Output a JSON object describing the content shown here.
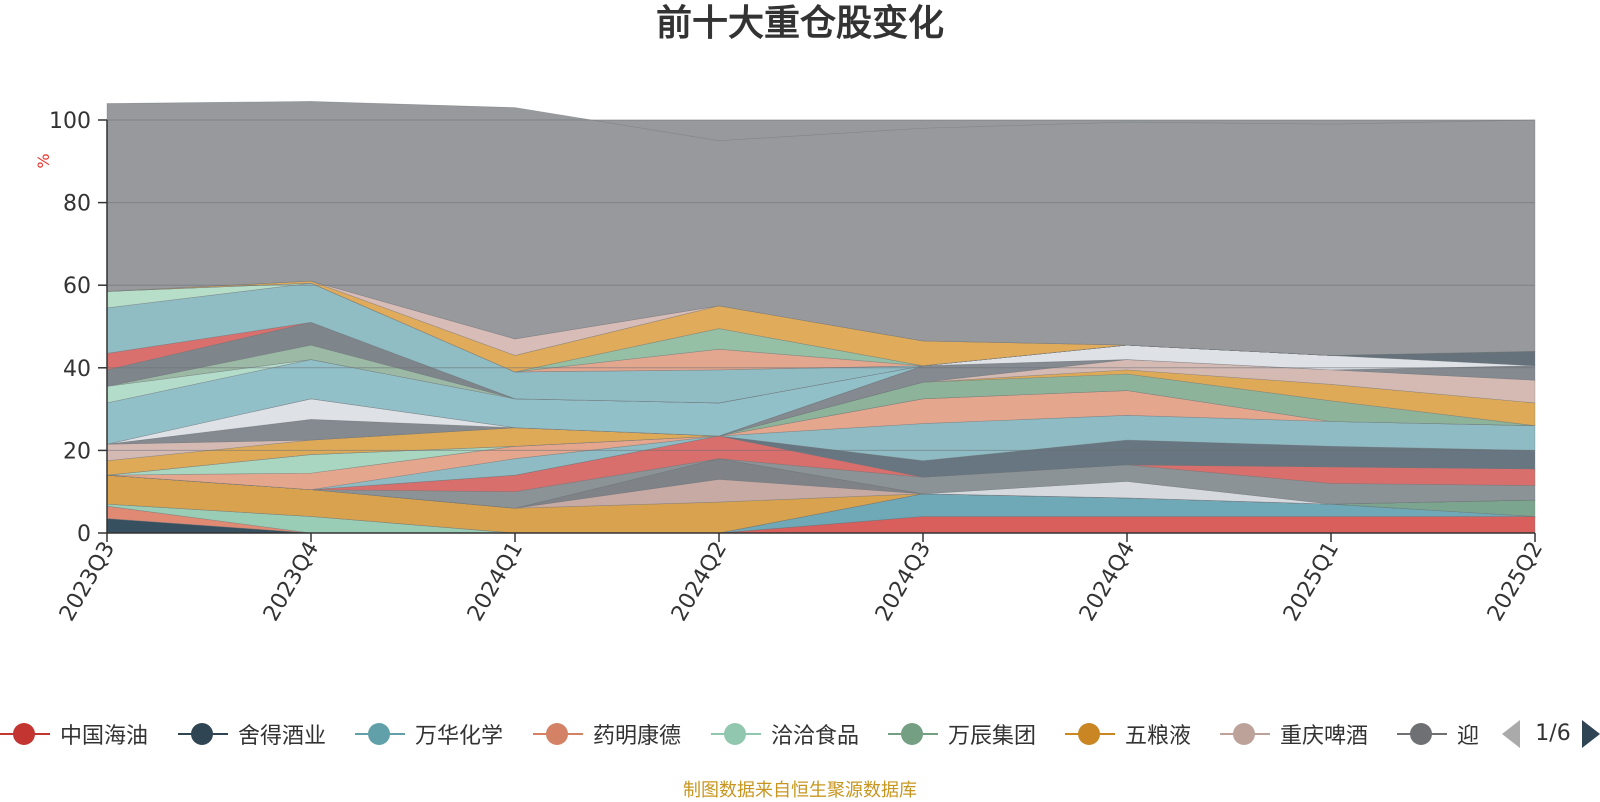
{
  "chart_data": {
    "type": "area",
    "stacked": true,
    "title": "前十大重仓股变化",
    "ylabel": "%",
    "ylim": [
      0,
      100
    ],
    "yticks": [
      0,
      20,
      40,
      60,
      80,
      100
    ],
    "grid": true,
    "categories": [
      "2023Q3",
      "2023Q4",
      "2024Q1",
      "2024Q2",
      "2024Q3",
      "2024Q4",
      "2025Q1",
      "2025Q2"
    ],
    "series": [
      {
        "name": "中国海油",
        "color": "#d95f5d",
        "values": [
          0,
          0,
          0,
          0,
          4,
          4,
          4,
          4
        ]
      },
      {
        "name": "舍得酒业",
        "color": "#37505f",
        "values": [
          3.5,
          0,
          0,
          0,
          0,
          0,
          0,
          0
        ]
      },
      {
        "name": "万华化学",
        "color": "#6fa8b6",
        "values": [
          0,
          0,
          0,
          0,
          5.5,
          4.5,
          3,
          0
        ]
      },
      {
        "name": "药明康德",
        "color": "#e08a74",
        "values": [
          3,
          0,
          0,
          0,
          0,
          0,
          0,
          0
        ]
      },
      {
        "name": "洽洽食品",
        "color": "#99cdb6",
        "values": [
          0.5,
          4,
          0,
          0,
          0,
          0,
          0,
          0
        ]
      },
      {
        "name": "万辰集团",
        "color": "#7ba58e",
        "values": [
          0,
          0,
          0,
          0,
          0,
          0,
          0,
          4
        ]
      },
      {
        "name": "五粮液",
        "color": "#d9a24e",
        "values": [
          7,
          6.5,
          6,
          7.5,
          0,
          0,
          0,
          0
        ]
      },
      {
        "name": "重庆啤酒",
        "color": "#c7aaa4",
        "values": [
          0,
          0,
          0,
          5.5,
          0,
          0,
          0,
          0
        ]
      },
      {
        "name": "迎驾贡酒",
        "color": "#7f8387",
        "values": [
          0,
          0,
          0,
          5,
          0,
          0,
          0,
          0
        ]
      },
      {
        "name": "",
        "color": "#d6d9de",
        "values": [
          0,
          0,
          0,
          0,
          0,
          4,
          0,
          0
        ]
      },
      {
        "name": "",
        "color": "#8c9396",
        "values": [
          0,
          0,
          4,
          0,
          4,
          4,
          5,
          3.5
        ]
      },
      {
        "name": "",
        "color": "#d86f6c",
        "values": [
          0,
          0,
          4,
          5.5,
          0,
          0,
          4,
          4
        ]
      },
      {
        "name": "",
        "color": "#677681",
        "values": [
          0,
          0,
          0,
          0,
          4,
          6,
          5,
          4.5
        ]
      },
      {
        "name": "",
        "color": "#8fbcc4",
        "values": [
          0,
          0,
          4,
          0,
          9,
          6,
          6,
          6
        ]
      },
      {
        "name": "",
        "color": "#e4a68d",
        "values": [
          0,
          4,
          3,
          0,
          6,
          6,
          0,
          0
        ]
      },
      {
        "name": "",
        "color": "#a8d6c0",
        "values": [
          0,
          4.5,
          0,
          0,
          0,
          0,
          0,
          0
        ]
      },
      {
        "name": "",
        "color": "#8db49a",
        "values": [
          0,
          0,
          0,
          0,
          4,
          4,
          5,
          0
        ]
      },
      {
        "name": "",
        "color": "#deaa58",
        "values": [
          3.5,
          3.5,
          4.5,
          0,
          0,
          1,
          4,
          5.5
        ]
      },
      {
        "name": "",
        "color": "#d5bab4",
        "values": [
          4,
          0,
          0,
          0,
          0,
          2.5,
          3.5,
          5.5
        ]
      },
      {
        "name": "",
        "color": "#848a8f",
        "values": [
          0,
          5,
          0,
          0,
          4,
          0,
          0,
          3.5
        ]
      },
      {
        "name": "",
        "color": "#dee1e6",
        "values": [
          0,
          5,
          0,
          0,
          0,
          3.5,
          3.5,
          0
        ]
      },
      {
        "name": "",
        "color": "#66727b",
        "values": [
          0,
          0,
          0,
          0,
          0,
          0,
          0,
          3.5
        ]
      },
      {
        "name": "",
        "color": "#92c0c8",
        "values": [
          10,
          9.5,
          7,
          8,
          0,
          0,
          0,
          0
        ]
      },
      {
        "name": "",
        "color": "#b4dccb",
        "values": [
          4,
          0,
          0,
          0,
          0,
          0,
          0,
          0
        ]
      },
      {
        "name": "",
        "color": "#9bb9a4",
        "values": [
          0,
          3.5,
          0,
          0,
          0,
          0,
          0,
          0
        ]
      },
      {
        "name": "",
        "color": "#7e868c",
        "values": [
          4,
          5.5,
          0,
          0,
          0,
          0,
          0,
          0
        ]
      },
      {
        "name": "",
        "color": "#d9706e",
        "values": [
          4,
          0,
          0,
          0,
          0,
          0,
          0,
          0
        ]
      },
      {
        "name": "",
        "color": "#90bcc4",
        "values": [
          11,
          9.5,
          6.5,
          8,
          0,
          0,
          0,
          0
        ]
      },
      {
        "name": "",
        "color": "#b7dec9",
        "values": [
          4,
          0,
          0,
          0,
          0,
          0,
          0,
          0
        ]
      },
      {
        "name": "",
        "color": "#e3a68e",
        "values": [
          0,
          0,
          0,
          5,
          0,
          0,
          0,
          0
        ]
      },
      {
        "name": "",
        "color": "#95c0a5",
        "values": [
          0,
          0,
          0,
          5,
          0,
          0,
          0,
          0
        ]
      },
      {
        "name": "",
        "color": "#e0ab5a",
        "values": [
          0,
          0.5,
          4,
          5.5,
          6,
          0,
          0,
          0
        ]
      },
      {
        "name": "",
        "color": "#d8bcb7",
        "values": [
          0,
          0,
          4,
          0,
          0,
          0,
          0,
          0
        ]
      },
      {
        "name": "",
        "color": "#97999c",
        "values": [
          45.5,
          43.5,
          56,
          40,
          51.5,
          54,
          56,
          56
        ]
      }
    ]
  },
  "legend": {
    "items": [
      "中国海油",
      "舍得酒业",
      "万华化学",
      "药明康德",
      "洽洽食品",
      "万辰集团",
      "五粮液",
      "重庆啤酒",
      "迎驾贡酒"
    ],
    "colors": [
      "#c23531",
      "#2f4554",
      "#61a0a8",
      "#d48265",
      "#91c7ae",
      "#749f83",
      "#ca8622",
      "#bda29a",
      "#6e7074"
    ],
    "page": "1/6",
    "prev_icon": "triangle-left-icon",
    "next_icon": "triangle-right-icon"
  },
  "footer": {
    "source": "制图数据来自恒生聚源数据库"
  }
}
